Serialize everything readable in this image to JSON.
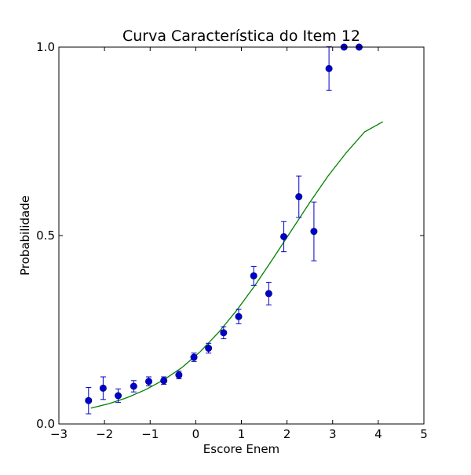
{
  "chart_data": {
    "type": "scatter",
    "title": "Curva Característica do Item 12",
    "xlabel": "Escore Enem",
    "ylabel": "Probabilidade",
    "xlim": [
      -3,
      5
    ],
    "ylim": [
      0.0,
      1.0
    ],
    "x_ticks": [
      -3,
      -2,
      -1,
      0,
      1,
      2,
      3,
      4,
      5
    ],
    "x_tick_labels": [
      "−3",
      "−2",
      "−1",
      "0",
      "1",
      "2",
      "3",
      "4",
      "5"
    ],
    "y_ticks": [
      0.0,
      0.5,
      1.0
    ],
    "y_tick_labels": [
      "0.0",
      "0.5",
      "1.0"
    ],
    "grid": false,
    "series": [
      {
        "kind": "errorbar-points",
        "color": "#0000cc",
        "points": [
          {
            "x": -2.35,
            "y": 0.062,
            "err": 0.035
          },
          {
            "x": -2.03,
            "y": 0.095,
            "err": 0.03
          },
          {
            "x": -1.7,
            "y": 0.075,
            "err": 0.018
          },
          {
            "x": -1.36,
            "y": 0.1,
            "err": 0.015
          },
          {
            "x": -1.03,
            "y": 0.113,
            "err": 0.012
          },
          {
            "x": -0.7,
            "y": 0.115,
            "err": 0.01
          },
          {
            "x": -0.37,
            "y": 0.13,
            "err": 0.01
          },
          {
            "x": -0.04,
            "y": 0.177,
            "err": 0.011
          },
          {
            "x": 0.28,
            "y": 0.201,
            "err": 0.013
          },
          {
            "x": 0.61,
            "y": 0.242,
            "err": 0.016
          },
          {
            "x": 0.94,
            "y": 0.285,
            "err": 0.019
          },
          {
            "x": 1.27,
            "y": 0.393,
            "err": 0.025
          },
          {
            "x": 1.6,
            "y": 0.346,
            "err": 0.03
          },
          {
            "x": 1.93,
            "y": 0.497,
            "err": 0.04
          },
          {
            "x": 2.26,
            "y": 0.603,
            "err": 0.055
          },
          {
            "x": 2.59,
            "y": 0.511,
            "err": 0.078
          },
          {
            "x": 2.92,
            "y": 0.943,
            "err": 0.058
          },
          {
            "x": 3.25,
            "y": 1.0,
            "err": 0.0
          },
          {
            "x": 3.58,
            "y": 1.0,
            "err": 0.0
          }
        ]
      },
      {
        "kind": "line",
        "color": "#008000",
        "x": [
          -2.3,
          -1.9,
          -1.5,
          -1.1,
          -0.7,
          -0.3,
          0.1,
          0.5,
          0.9,
          1.3,
          1.7,
          2.1,
          2.5,
          2.9,
          3.3,
          3.7,
          4.1
        ],
        "y": [
          0.042,
          0.054,
          0.07,
          0.091,
          0.117,
          0.15,
          0.192,
          0.243,
          0.302,
          0.368,
          0.44,
          0.514,
          0.588,
          0.658,
          0.72,
          0.775,
          0.802
        ]
      }
    ]
  }
}
